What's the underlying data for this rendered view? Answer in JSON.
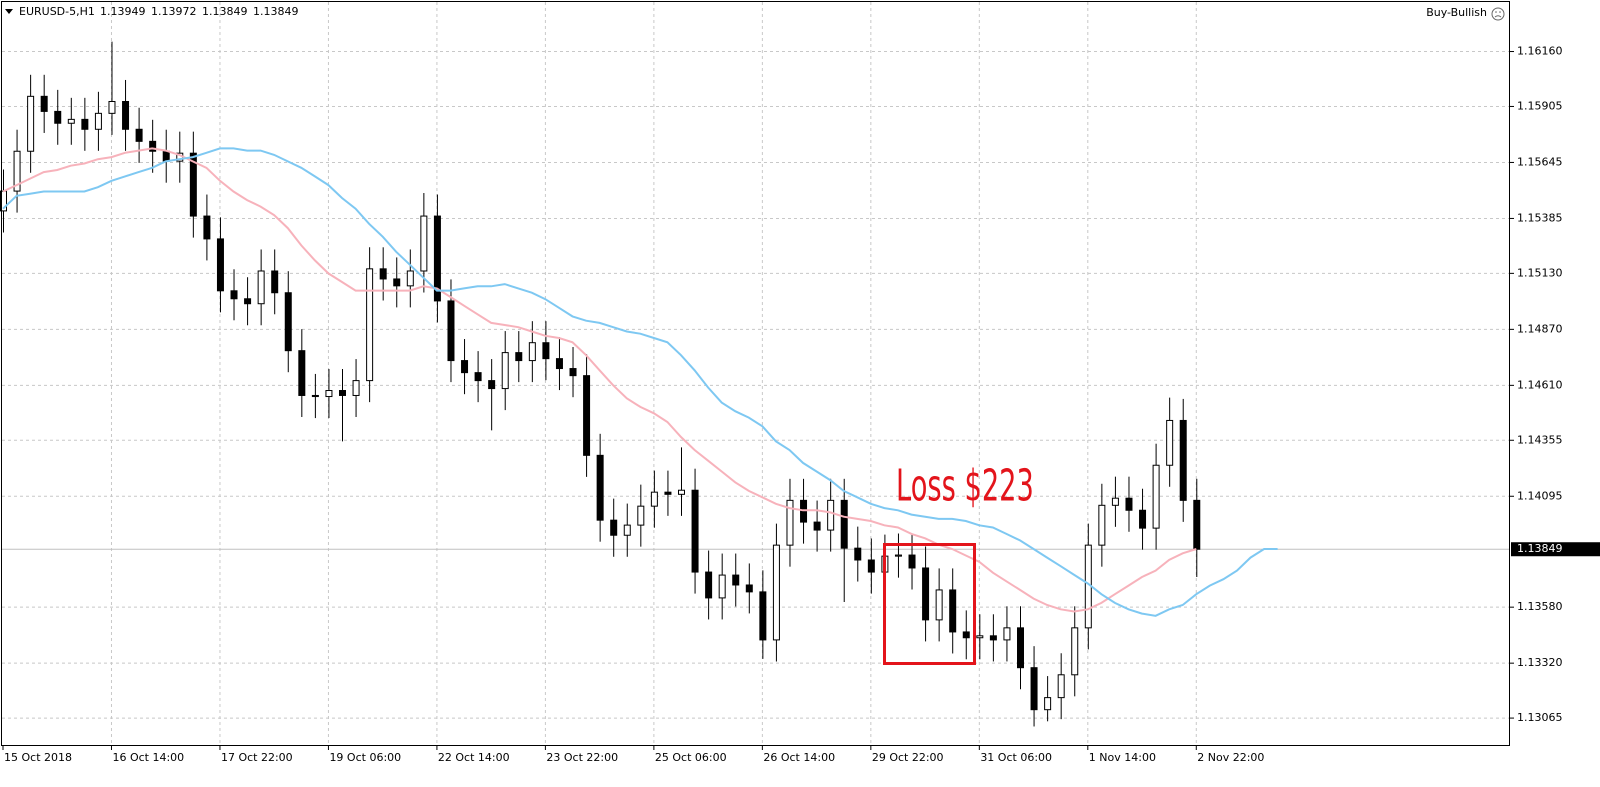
{
  "chart_data": {
    "type": "candlestick",
    "symbol": "EURUSD-5,H1",
    "ohlc": [
      1.13949,
      1.13972,
      1.13849,
      1.13849
    ],
    "signal": "Buy-Bullish",
    "annotation": "Loss $223",
    "candle_color": "#000000",
    "grid": true,
    "ylim": [
      1.1294,
      1.1639
    ],
    "yticks": [
      {
        "value": 1.1616,
        "label": "1.16160"
      },
      {
        "value": 1.15905,
        "label": "1.15905"
      },
      {
        "value": 1.15645,
        "label": "1.15645"
      },
      {
        "value": 1.15385,
        "label": "1.15385"
      },
      {
        "value": 1.1513,
        "label": "1.15130"
      },
      {
        "value": 1.1487,
        "label": "1.14870"
      },
      {
        "value": 1.1461,
        "label": "1.14610"
      },
      {
        "value": 1.14355,
        "label": "1.14355"
      },
      {
        "value": 1.14095,
        "label": "1.14095"
      },
      {
        "value": 1.1358,
        "label": "1.13580"
      },
      {
        "value": 1.1332,
        "label": "1.13320"
      },
      {
        "value": 1.13065,
        "label": "1.13065"
      }
    ],
    "last_price": 1.13849,
    "categories": [
      "15 Oct 2018",
      null,
      null,
      null,
      null,
      null,
      null,
      null,
      "16 Oct 14:00",
      null,
      null,
      null,
      null,
      null,
      null,
      null,
      "17 Oct 22:00",
      null,
      null,
      null,
      null,
      null,
      null,
      null,
      "19 Oct 06:00",
      null,
      null,
      null,
      null,
      null,
      null,
      null,
      "22 Oct 14:00",
      null,
      null,
      null,
      null,
      null,
      null,
      null,
      "23 Oct 22:00",
      null,
      null,
      null,
      null,
      null,
      null,
      null,
      "25 Oct 06:00",
      null,
      null,
      null,
      null,
      null,
      null,
      null,
      "26 Oct 14:00",
      null,
      null,
      null,
      null,
      null,
      null,
      null,
      "29 Oct 22:00",
      null,
      null,
      null,
      null,
      null,
      null,
      null,
      "31 Oct 06:00",
      null,
      null,
      null,
      null,
      null,
      null,
      null,
      "1 Nov 14:00",
      null,
      null,
      null,
      null,
      null,
      null,
      null,
      "2 Nov 22:00",
      null,
      null,
      null,
      null,
      null,
      null
    ],
    "open": [
      1.1542,
      1.15512,
      1.15697,
      1.15952,
      1.15882,
      1.15827,
      1.15845,
      1.15799,
      1.15873,
      1.15928,
      1.15799,
      1.15743,
      1.15697,
      1.15651,
      1.15688,
      1.15396,
      1.1529,
      1.15049,
      1.15012,
      1.14989,
      1.15141,
      1.1504,
      1.14771,
      1.14563,
      1.14558,
      1.14586,
      1.14563,
      1.14632,
      1.15151,
      1.15104,
      1.15072,
      1.15141,
      1.15396,
      1.15002,
      1.14725,
      1.14669,
      1.14632,
      1.14595,
      1.14762,
      1.14725,
      1.14808,
      1.14734,
      1.14688,
      1.14655,
      1.14285,
      1.13984,
      1.13914,
      1.13961,
      1.14049,
      1.14114,
      1.14104,
      1.14123,
      1.13743,
      1.13623,
      1.13729,
      1.13683,
      1.13651,
      1.13428,
      1.13868,
      1.14076,
      1.13975,
      1.13938,
      1.14076,
      1.13854,
      1.13799,
      1.13743,
      1.13817,
      1.13822,
      1.13762,
      1.13521,
      1.1366,
      1.13465,
      1.13438,
      1.13447,
      1.13428,
      1.13484,
      1.13299,
      1.13104,
      1.1316,
      1.13266,
      1.13484,
      1.13868,
      1.14053,
      1.14086,
      1.1403,
      1.13947,
      1.14239,
      1.14447,
      1.14076,
      null,
      null,
      null,
      null,
      null,
      null
    ],
    "high": [
      1.15612,
      1.15797,
      1.16052,
      1.16052,
      1.15982,
      1.15945,
      1.15945,
      1.15973,
      1.16206,
      1.16028,
      1.15899,
      1.15843,
      1.15797,
      1.15788,
      1.15788,
      1.15496,
      1.1539,
      1.15149,
      1.15112,
      1.15241,
      1.15241,
      1.1514,
      1.14871,
      1.14663,
      1.14686,
      1.14686,
      1.14732,
      1.15251,
      1.15251,
      1.15204,
      1.15241,
      1.15503,
      1.15496,
      1.15102,
      1.14825,
      1.14769,
      1.14732,
      1.14862,
      1.14862,
      1.14908,
      1.14908,
      1.14834,
      1.14788,
      1.14755,
      1.14385,
      1.14084,
      1.14061,
      1.14149,
      1.14214,
      1.14214,
      1.14322,
      1.14223,
      1.13843,
      1.13829,
      1.13829,
      1.13783,
      1.13751,
      1.13968,
      1.14176,
      1.14176,
      1.14075,
      1.14176,
      1.14176,
      1.13954,
      1.13899,
      1.13917,
      1.13922,
      1.13922,
      1.13862,
      1.1376,
      1.1376,
      1.13565,
      1.13547,
      1.13547,
      1.13584,
      1.13584,
      1.13399,
      1.1326,
      1.13366,
      1.13584,
      1.13968,
      1.14153,
      1.14186,
      1.14186,
      1.1413,
      1.14339,
      1.14553,
      1.14547,
      1.14176,
      null,
      null,
      null,
      null,
      null,
      null
    ],
    "low": [
      1.1532,
      1.15412,
      1.15597,
      1.15782,
      1.15727,
      1.15727,
      1.15699,
      1.15699,
      1.15773,
      1.15699,
      1.15643,
      1.15597,
      1.15551,
      1.15551,
      1.15296,
      1.1519,
      1.14949,
      1.14912,
      1.14889,
      1.14889,
      1.1494,
      1.14671,
      1.14463,
      1.14458,
      1.14458,
      1.1435,
      1.14463,
      1.14532,
      1.15004,
      1.14972,
      1.14972,
      1.15041,
      1.14902,
      1.14625,
      1.14569,
      1.14532,
      1.14401,
      1.14495,
      1.14625,
      1.14625,
      1.14634,
      1.14588,
      1.14555,
      1.14185,
      1.13884,
      1.13814,
      1.13814,
      1.13861,
      1.13949,
      1.14004,
      1.14004,
      1.13643,
      1.13523,
      1.13523,
      1.13583,
      1.13551,
      1.1334,
      1.13328,
      1.13768,
      1.13875,
      1.13838,
      1.13838,
      1.13604,
      1.13699,
      1.13643,
      1.13643,
      1.13717,
      1.13662,
      1.13421,
      1.13421,
      1.13365,
      1.13338,
      1.13338,
      1.13328,
      1.13328,
      1.13199,
      1.13026,
      1.1305,
      1.1306,
      1.13166,
      1.13384,
      1.13768,
      1.13953,
      1.1393,
      1.13847,
      1.13847,
      1.14139,
      1.13976,
      1.1372,
      null,
      null,
      null,
      null,
      null,
      null
    ],
    "close": [
      1.15512,
      1.15697,
      1.15952,
      1.15882,
      1.15827,
      1.15845,
      1.15799,
      1.15873,
      1.15928,
      1.15799,
      1.15743,
      1.15697,
      1.15651,
      1.15688,
      1.15396,
      1.1529,
      1.15049,
      1.15012,
      1.14989,
      1.15141,
      1.1504,
      1.14771,
      1.14563,
      1.14558,
      1.14586,
      1.14563,
      1.14632,
      1.15151,
      1.15104,
      1.15072,
      1.15141,
      1.15396,
      1.15002,
      1.14725,
      1.14669,
      1.14632,
      1.14595,
      1.14762,
      1.14725,
      1.14808,
      1.14734,
      1.14688,
      1.14655,
      1.14285,
      1.13984,
      1.13914,
      1.13961,
      1.14049,
      1.14114,
      1.14104,
      1.14123,
      1.13743,
      1.13623,
      1.13729,
      1.13683,
      1.13651,
      1.13428,
      1.13868,
      1.14076,
      1.13975,
      1.13938,
      1.14076,
      1.13854,
      1.13799,
      1.13743,
      1.13817,
      1.13822,
      1.13762,
      1.13521,
      1.1366,
      1.13465,
      1.13438,
      1.13447,
      1.13428,
      1.13484,
      1.13299,
      1.13104,
      1.1316,
      1.13266,
      1.13484,
      1.13868,
      1.14053,
      1.14086,
      1.1403,
      1.13947,
      1.14239,
      1.14447,
      1.14076,
      1.13849,
      null,
      null,
      null,
      null,
      null,
      null
    ],
    "series": [
      {
        "color": "#f7b2bb",
        "values": [
          1.1551,
          1.1554,
          1.1557,
          1.156,
          1.1561,
          1.1563,
          1.1564,
          1.1566,
          1.1567,
          1.1569,
          1.157,
          1.1571,
          1.157,
          1.1568,
          1.1565,
          1.1562,
          1.1556,
          1.1551,
          1.1547,
          1.1544,
          1.154,
          1.1534,
          1.1526,
          1.1519,
          1.1513,
          1.1509,
          1.1505,
          1.1505,
          1.1505,
          1.1505,
          1.1505,
          1.1507,
          1.1506,
          1.1502,
          1.1498,
          1.1494,
          1.149,
          1.1489,
          1.1488,
          1.1486,
          1.1484,
          1.1483,
          1.1481,
          1.1475,
          1.1468,
          1.1461,
          1.1455,
          1.1451,
          1.1448,
          1.1444,
          1.1437,
          1.1431,
          1.1426,
          1.1421,
          1.1416,
          1.1412,
          1.1409,
          1.1406,
          1.1404,
          1.1403,
          1.1403,
          1.1402,
          1.14,
          1.1399,
          1.1398,
          1.1396,
          1.1395,
          1.1392,
          1.139,
          1.1387,
          1.1385,
          1.1382,
          1.1379,
          1.1374,
          1.137,
          1.1366,
          1.1362,
          1.1359,
          1.1357,
          1.1356,
          1.1357,
          1.136,
          1.1364,
          1.1368,
          1.1372,
          1.1375,
          1.138,
          1.1383,
          1.1385,
          null,
          null,
          null,
          null,
          null,
          null
        ]
      },
      {
        "color": "#7ec8f2",
        "values": [
          1.1543,
          1.1549,
          1.155,
          1.1551,
          1.1551,
          1.1551,
          1.1551,
          1.1553,
          1.1556,
          1.1558,
          1.156,
          1.1562,
          1.1565,
          1.1566,
          1.1567,
          1.1569,
          1.1571,
          1.1571,
          1.157,
          1.157,
          1.1568,
          1.1565,
          1.1562,
          1.1558,
          1.1554,
          1.1548,
          1.1543,
          1.1536,
          1.153,
          1.1523,
          1.1517,
          1.1511,
          1.1505,
          1.1505,
          1.1506,
          1.1507,
          1.1507,
          1.1508,
          1.1506,
          1.1504,
          1.1501,
          1.1497,
          1.1493,
          1.1491,
          1.149,
          1.1488,
          1.1486,
          1.1485,
          1.1483,
          1.1481,
          1.1475,
          1.1468,
          1.146,
          1.1453,
          1.1449,
          1.1446,
          1.1442,
          1.1435,
          1.1431,
          1.1425,
          1.1421,
          1.1417,
          1.1412,
          1.1409,
          1.1406,
          1.1404,
          1.1403,
          1.1401,
          1.14,
          1.1399,
          1.1399,
          1.1398,
          1.1396,
          1.1395,
          1.1392,
          1.1389,
          1.1385,
          1.1381,
          1.1377,
          1.1373,
          1.1369,
          1.1364,
          1.136,
          1.1357,
          1.1355,
          1.1354,
          1.1357,
          1.1359,
          1.1364,
          1.1368,
          1.1371,
          1.1375,
          1.1381,
          1.1385,
          1.1385
        ]
      }
    ]
  }
}
